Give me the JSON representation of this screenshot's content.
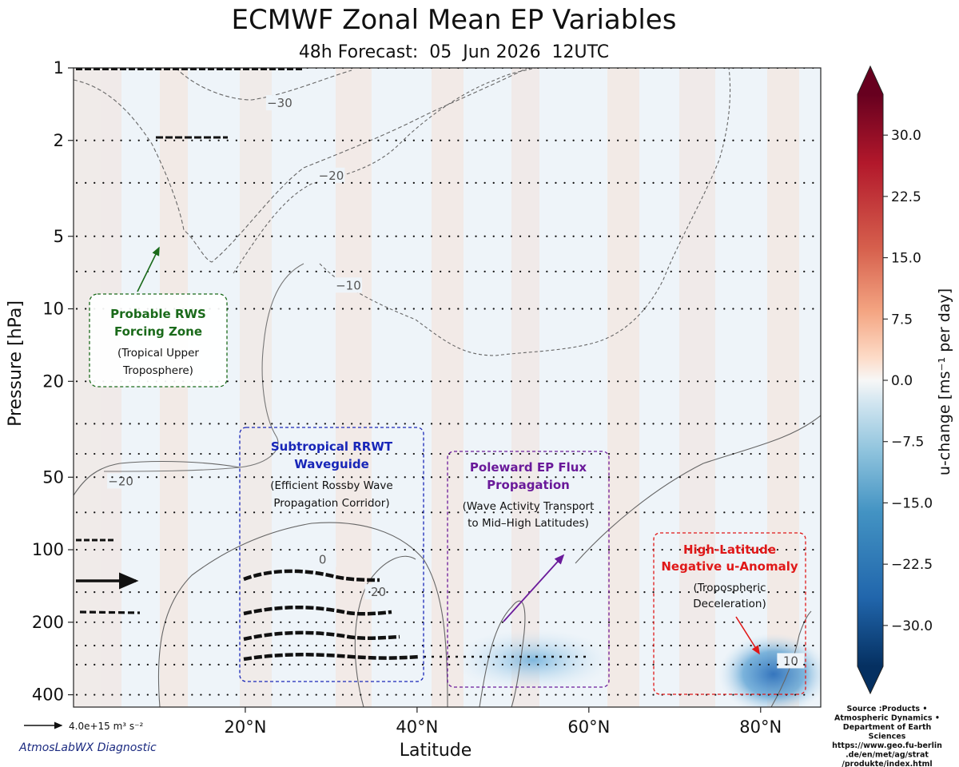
{
  "chart_data": {
    "type": "heatmap",
    "title": "ECMWF Zonal Mean EP Variables",
    "subtitle": "48h Forecast:  05  Jun 2026  12UTC",
    "xlabel": "Latitude",
    "ylabel": "Pressure [hPa]",
    "xlim": [
      0,
      87
    ],
    "ylim": [
      450,
      1
    ],
    "y_scale": "log",
    "y_inverted": true,
    "x_ticks": [
      {
        "value": 20,
        "label": "20°N"
      },
      {
        "value": 40,
        "label": "40°N"
      },
      {
        "value": 60,
        "label": "60°N"
      },
      {
        "value": 80,
        "label": "80°N"
      }
    ],
    "y_ticks": [
      {
        "value": 1,
        "label": "1"
      },
      {
        "value": 2,
        "label": "2"
      },
      {
        "value": 5,
        "label": "5"
      },
      {
        "value": 10,
        "label": "10"
      },
      {
        "value": 20,
        "label": "20"
      },
      {
        "value": 50,
        "label": "50"
      },
      {
        "value": 100,
        "label": "100"
      },
      {
        "value": 200,
        "label": "200"
      },
      {
        "value": 400,
        "label": "400"
      }
    ],
    "vector_levels_hPa": [
      1,
      2,
      3,
      5,
      7,
      10,
      20,
      30,
      40,
      50,
      70,
      100,
      150,
      200,
      250,
      300,
      400
    ],
    "colorbar": {
      "label": "u-change [ms⁻¹ per day]",
      "min": -35,
      "max": 35,
      "extend": "both",
      "ticks": [
        "30.0",
        "22.5",
        "15.0",
        "7.5",
        "0.0",
        "−7.5",
        "−15.0",
        "−22.5",
        "−30.0"
      ],
      "tick_values": [
        30,
        22.5,
        15,
        7.5,
        0,
        -7.5,
        -15,
        -22.5,
        -30
      ],
      "colormap": "RdBu_r"
    },
    "contour_labels": [
      {
        "text": "−30",
        "x": 24,
        "p": 1.4
      },
      {
        "text": "−20",
        "x": 30,
        "p": 2.8
      },
      {
        "text": "−10",
        "x": 32,
        "p": 8
      },
      {
        "text": "−20",
        "x": 5.5,
        "p": 52
      },
      {
        "text": "0",
        "x": 29,
        "p": 110
      },
      {
        "text": "20",
        "x": 35.5,
        "p": 150
      },
      {
        "text": "10",
        "x": 83.5,
        "p": 290
      }
    ],
    "negative_anomaly_areas": [
      {
        "x": [
          45,
          62
        ],
        "p": [
          230,
          360
        ],
        "peak": -15
      },
      {
        "x": [
          76,
          87
        ],
        "p": [
          240,
          450
        ],
        "peak": -28
      }
    ],
    "quiver_key": {
      "label": "4.0e+15 m³ s⁻²"
    },
    "annotations": [
      {
        "title": [
          "Probable RWS",
          "Forcing Zone"
        ],
        "body": [
          "(Tropical Upper",
          "Troposphere)"
        ],
        "color": "#1a6a1a"
      },
      {
        "title": [
          "Subtropical RRWT",
          "Waveguide"
        ],
        "body": [
          "(Efficient Rossby Wave",
          "Propagation Corridor)"
        ],
        "color": "#1826b8"
      },
      {
        "title": [
          "Poleward EP Flux",
          "Propagation"
        ],
        "body": [
          "(Wave Activity Transport",
          "to Mid–High Latitudes)"
        ],
        "color": "#6a1a9a"
      },
      {
        "title": [
          "High-Latitude",
          "Negative u-Anomaly"
        ],
        "body": [
          "(Tropospheric",
          "Deceleration)"
        ],
        "color": "#e01818"
      }
    ]
  },
  "footer": {
    "brand": "AtmosLabWX Diagnostic",
    "source_lines": [
      "Source :Products •",
      "Atmospheric Dynamics •",
      "Department of Earth",
      "Sciences",
      "https://www.geo.fu-berlin",
      ".de/en/met/ag/strat",
      "/produkte/index.html"
    ]
  }
}
